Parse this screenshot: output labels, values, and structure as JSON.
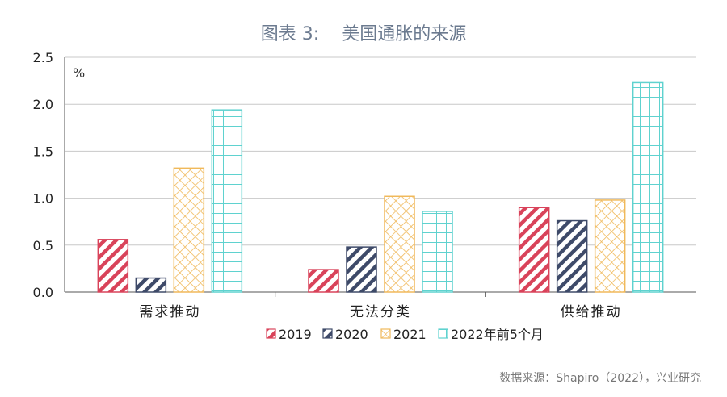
{
  "header": {
    "figure_label": "图表 3:",
    "title": "美国通胀的来源"
  },
  "source": "数据来源：Shapiro（2022），兴业研究",
  "chart_data": {
    "type": "bar",
    "unit_label": "%",
    "categories": [
      "需求推动",
      "无法分类",
      "供给推动"
    ],
    "ylim": [
      0,
      2.5
    ],
    "yticks": [
      "0.0",
      "0.5",
      "1.0",
      "1.5",
      "2.0",
      "2.5"
    ],
    "ytick_values": [
      0,
      0.5,
      1.0,
      1.5,
      2.0,
      2.5
    ],
    "grid": true,
    "legend_position": "bottom",
    "series": [
      {
        "name": "2019",
        "values": [
          0.56,
          0.24,
          0.9
        ],
        "color": "#d9435a",
        "pattern": "diagonal"
      },
      {
        "name": "2020",
        "values": [
          0.15,
          0.48,
          0.76
        ],
        "color": "#3e4a69",
        "pattern": "diagonal"
      },
      {
        "name": "2021",
        "values": [
          1.32,
          1.02,
          0.98
        ],
        "color": "#f0b95b",
        "pattern": "crosshatch"
      },
      {
        "name": "2022年前5个月",
        "values": [
          1.94,
          0.86,
          2.23
        ],
        "color": "#5fd2cf",
        "pattern": "grid"
      }
    ]
  }
}
